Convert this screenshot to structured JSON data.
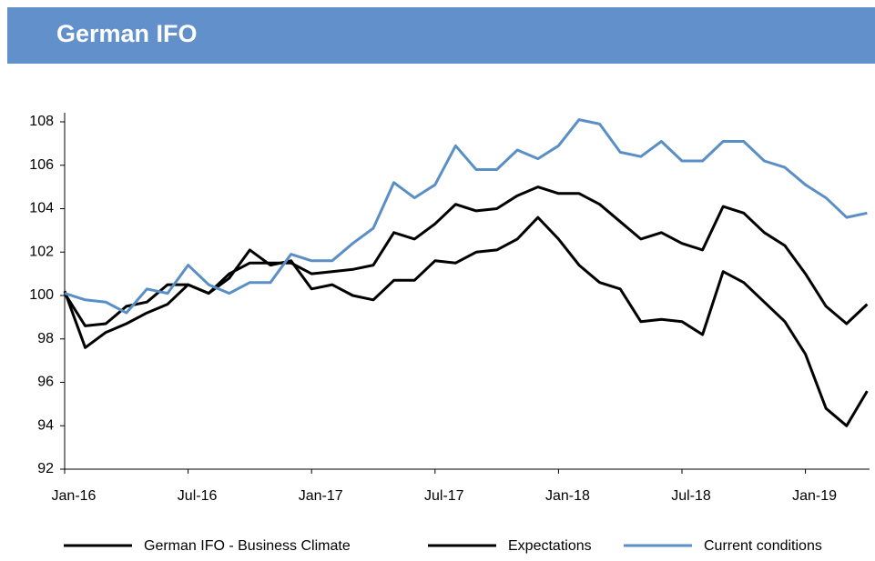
{
  "chart_data": {
    "type": "line",
    "title": "German IFO",
    "categories": [
      "Jan-16",
      null,
      null,
      null,
      null,
      null,
      "Jul-16",
      null,
      null,
      null,
      null,
      null,
      "Jan-17",
      null,
      null,
      null,
      null,
      null,
      "Jul-17",
      null,
      null,
      null,
      null,
      null,
      "Jan-18",
      null,
      null,
      null,
      null,
      null,
      "Jul-18",
      null,
      null,
      null,
      null,
      null,
      "Jan-19",
      null,
      null,
      null
    ],
    "series": [
      {
        "name": "German IFO - Business Climate",
        "color": "#000000",
        "values": [
          100.1,
          98.6,
          98.7,
          99.5,
          99.7,
          100.5,
          100.5,
          100.1,
          101.0,
          101.5,
          101.5,
          101.5,
          101.0,
          101.1,
          101.2,
          101.4,
          102.9,
          102.6,
          103.3,
          104.2,
          103.9,
          104.0,
          104.6,
          105.0,
          104.7,
          104.7,
          104.2,
          103.4,
          102.6,
          102.9,
          102.4,
          102.1,
          104.1,
          103.8,
          102.9,
          102.3,
          101.0,
          99.5,
          98.7,
          99.6
        ]
      },
      {
        "name": "Expectations",
        "color": "#000000",
        "values": [
          100.2,
          97.6,
          98.3,
          98.7,
          99.2,
          99.6,
          100.5,
          100.1,
          100.8,
          102.1,
          101.4,
          101.6,
          100.3,
          100.5,
          100.0,
          99.8,
          100.7,
          100.7,
          101.6,
          101.5,
          102.0,
          102.1,
          102.6,
          103.6,
          102.6,
          101.4,
          100.6,
          100.3,
          98.8,
          98.9,
          98.8,
          98.2,
          101.1,
          100.6,
          99.7,
          98.8,
          97.3,
          94.8,
          94.0,
          95.6
        ]
      },
      {
        "name": "Current conditions",
        "color": "#5a8fc5",
        "values": [
          100.1,
          99.8,
          99.7,
          99.2,
          100.3,
          100.1,
          101.4,
          100.5,
          100.1,
          100.6,
          100.6,
          101.9,
          101.6,
          101.6,
          102.4,
          103.1,
          105.2,
          104.5,
          105.1,
          106.9,
          105.8,
          105.8,
          106.7,
          106.3,
          106.9,
          108.1,
          107.9,
          106.6,
          106.4,
          107.1,
          106.2,
          106.2,
          107.1,
          107.1,
          106.2,
          105.9,
          105.1,
          104.5,
          103.6,
          103.8
        ]
      }
    ],
    "ylim": [
      92,
      108
    ],
    "yticks": [
      92,
      94,
      96,
      98,
      100,
      102,
      104,
      106,
      108
    ],
    "legend": "bottom"
  }
}
